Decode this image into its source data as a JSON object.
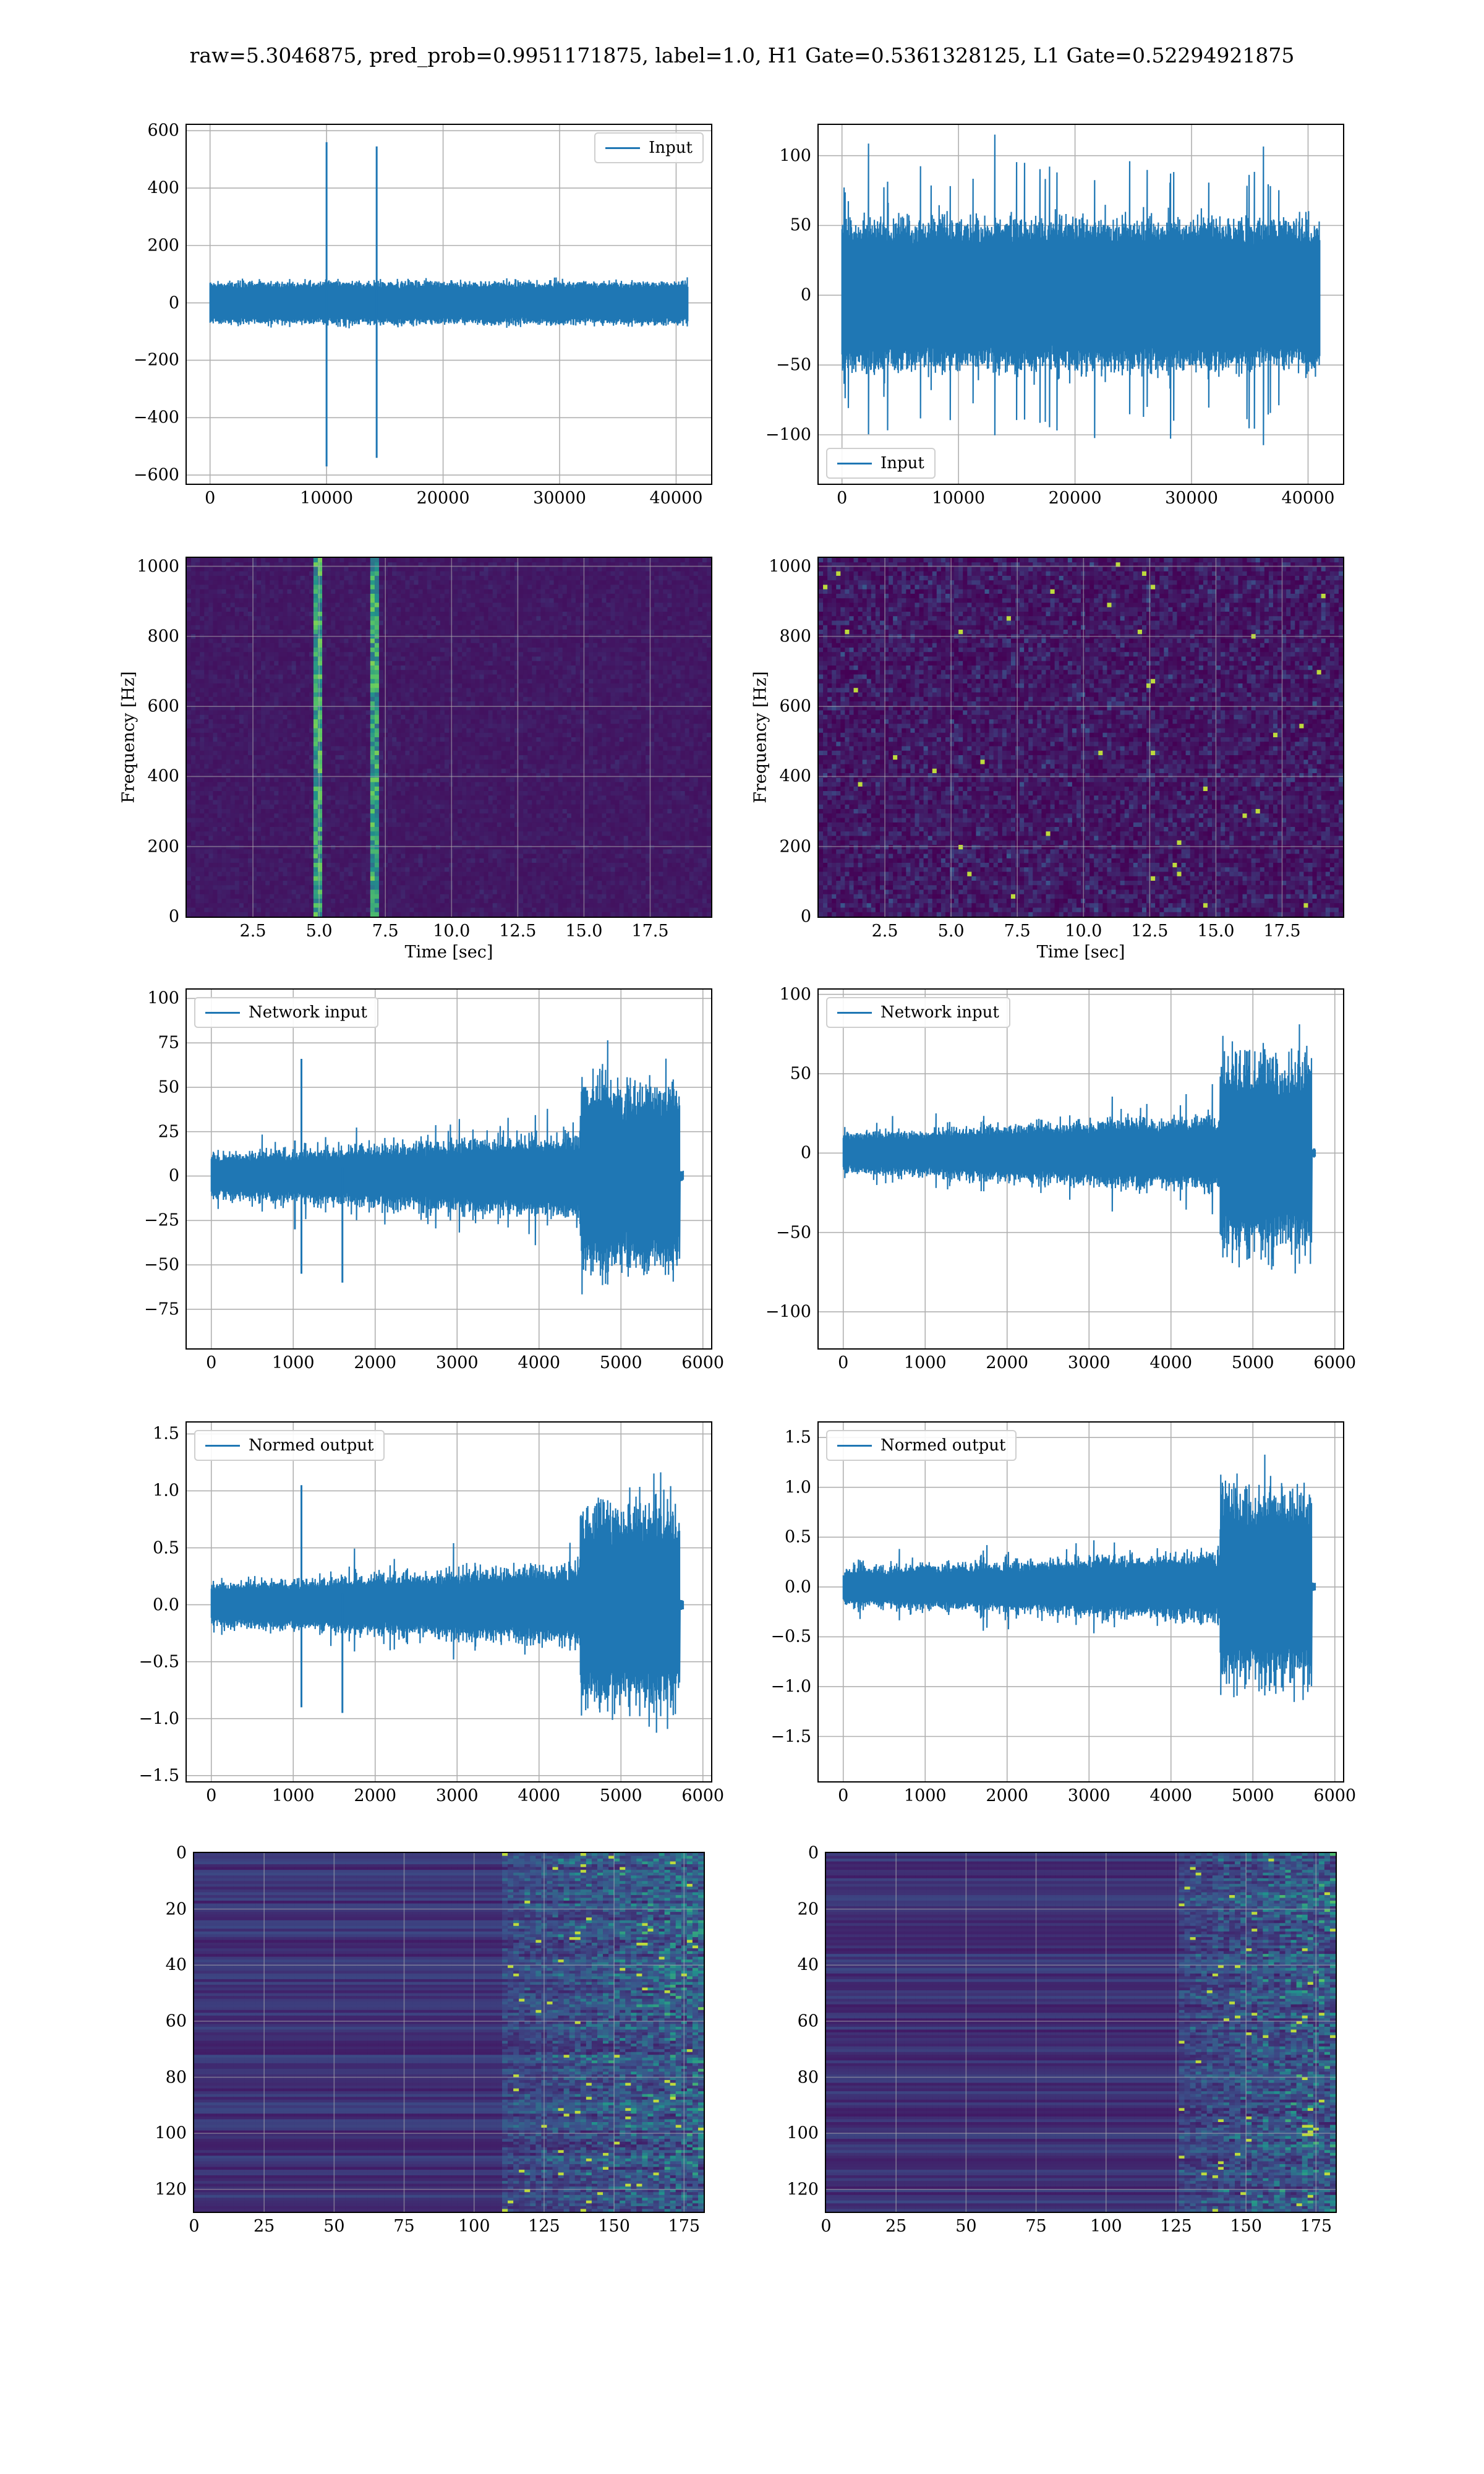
{
  "figure": {
    "title": "raw=5.3046875, pred_prob=0.9951171875, label=1.0, H1 Gate=0.5361328125, L1 Gate=0.52294921875"
  },
  "colors": {
    "line": "#1f77b4",
    "grid": "#b0b0b0",
    "heat_low": "#440154",
    "heat_mid": "#21918c",
    "heat_high": "#fde725"
  },
  "chart_data": [
    {
      "id": "h1-input",
      "type": "line",
      "legend": {
        "label": "Input",
        "location": "upper right"
      },
      "xlim": [
        -2000,
        43000
      ],
      "ylim": [
        -630,
        620
      ],
      "xticks": [
        0,
        10000,
        20000,
        30000,
        40000
      ],
      "yticks": [
        -600,
        -400,
        -200,
        0,
        200,
        400,
        600
      ],
      "series": [
        {
          "x_range": [
            0,
            41000
          ],
          "noise_amplitude": 90,
          "spikes": [
            {
              "x": 10000,
              "min": -570,
              "max": 560
            },
            {
              "x": 14300,
              "min": -540,
              "max": 545
            }
          ]
        }
      ],
      "grid": true,
      "xlabel": "",
      "ylabel": ""
    },
    {
      "id": "l1-input",
      "type": "line",
      "legend": {
        "label": "Input",
        "location": "lower left"
      },
      "xlim": [
        -2000,
        43000
      ],
      "ylim": [
        -135,
        122
      ],
      "xticks": [
        0,
        10000,
        20000,
        30000,
        40000
      ],
      "yticks": [
        -100,
        -50,
        0,
        50,
        100
      ],
      "series": [
        {
          "x_range": [
            0,
            41000
          ],
          "noise_amplitude": 65,
          "peak_amplitude": 118
        }
      ],
      "grid": true,
      "xlabel": "",
      "ylabel": ""
    },
    {
      "id": "h1-spectrogram",
      "type": "heatmap",
      "xlim": [
        0,
        19.8
      ],
      "ylim": [
        0,
        1024
      ],
      "xticks": [
        2.5,
        5.0,
        7.5,
        10.0,
        12.5,
        15.0,
        17.5
      ],
      "yticks": [
        0,
        200,
        400,
        600,
        800,
        1000
      ],
      "features": [
        {
          "kind": "vertical-line",
          "time": 5.0
        },
        {
          "kind": "vertical-line",
          "time": 7.1
        }
      ],
      "grid": true,
      "xlabel": "Time [sec]",
      "ylabel": "Frequency [Hz]"
    },
    {
      "id": "l1-spectrogram",
      "type": "heatmap",
      "xlim": [
        0,
        19.8
      ],
      "ylim": [
        0,
        1024
      ],
      "xticks": [
        2.5,
        5.0,
        7.5,
        10.0,
        12.5,
        15.0,
        17.5
      ],
      "yticks": [
        0,
        200,
        400,
        600,
        800,
        1000
      ],
      "features": [
        {
          "kind": "noise"
        }
      ],
      "grid": true,
      "xlabel": "Time [sec]",
      "ylabel": "Frequency [Hz]"
    },
    {
      "id": "h1-network-input",
      "type": "line",
      "legend": {
        "label": "Network input",
        "location": "upper left"
      },
      "xlim": [
        -300,
        6100
      ],
      "ylim": [
        -97,
        105
      ],
      "xticks": [
        0,
        1000,
        2000,
        3000,
        4000,
        5000,
        6000
      ],
      "yticks": [
        -75,
        -50,
        -25,
        0,
        25,
        50,
        75,
        100
      ],
      "series": [
        {
          "x_range": [
            0,
            5760
          ],
          "base_amplitude": 20,
          "burst_start": 4500,
          "burst_amplitude": 90,
          "spikes": [
            {
              "x": 1100,
              "min": -55,
              "max": 66
            },
            {
              "x": 1600,
              "min": -60,
              "max": 5
            },
            {
              "x": 1020,
              "min": -30,
              "max": 20
            }
          ]
        }
      ],
      "grid": true,
      "xlabel": "",
      "ylabel": ""
    },
    {
      "id": "l1-network-input",
      "type": "line",
      "legend": {
        "label": "Network input",
        "location": "upper left"
      },
      "xlim": [
        -300,
        6100
      ],
      "ylim": [
        -123,
        103
      ],
      "xticks": [
        0,
        1000,
        2000,
        3000,
        4000,
        5000,
        6000
      ],
      "yticks": [
        -100,
        -50,
        0,
        50,
        100
      ],
      "series": [
        {
          "x_range": [
            0,
            5760
          ],
          "base_amplitude": 20,
          "burst_start": 4600,
          "burst_amplitude": 100,
          "spikes": []
        }
      ],
      "grid": true,
      "xlabel": "",
      "ylabel": ""
    },
    {
      "id": "h1-normed-output",
      "type": "line",
      "legend": {
        "label": "Normed output",
        "location": "upper left"
      },
      "xlim": [
        -300,
        6100
      ],
      "ylim": [
        -1.55,
        1.6
      ],
      "xticks": [
        0,
        1000,
        2000,
        3000,
        4000,
        5000,
        6000
      ],
      "yticks": [
        -1.5,
        -1.0,
        -0.5,
        0.0,
        0.5,
        1.0,
        1.5
      ],
      "series": [
        {
          "x_range": [
            0,
            5760
          ],
          "base_amplitude": 0.3,
          "burst_start": 4500,
          "burst_amplitude": 1.45,
          "spikes": [
            {
              "x": 1100,
              "min": -0.9,
              "max": 1.05
            },
            {
              "x": 1600,
              "min": -0.95,
              "max": 0.1
            }
          ]
        }
      ],
      "grid": true,
      "xlabel": "",
      "ylabel": ""
    },
    {
      "id": "l1-normed-output",
      "type": "line",
      "legend": {
        "label": "Normed output",
        "location": "upper left"
      },
      "xlim": [
        -300,
        6100
      ],
      "ylim": [
        -1.95,
        1.65
      ],
      "xticks": [
        0,
        1000,
        2000,
        3000,
        4000,
        5000,
        6000
      ],
      "yticks": [
        -1.5,
        -1.0,
        -0.5,
        0.0,
        0.5,
        1.0,
        1.5
      ],
      "series": [
        {
          "x_range": [
            0,
            5760
          ],
          "base_amplitude": 0.3,
          "burst_start": 4600,
          "burst_amplitude": 1.6,
          "spikes": []
        }
      ],
      "grid": true,
      "xlabel": "",
      "ylabel": ""
    },
    {
      "id": "h1-features",
      "type": "heatmap",
      "xlim": [
        0,
        182
      ],
      "ylim": [
        128,
        0
      ],
      "xticks": [
        0,
        25,
        50,
        75,
        100,
        125,
        150,
        175
      ],
      "yticks": [
        0,
        20,
        40,
        60,
        80,
        100,
        120
      ],
      "features": [
        {
          "kind": "rows",
          "active_from": 110
        }
      ],
      "grid": true,
      "xlabel": "",
      "ylabel": ""
    },
    {
      "id": "l1-features",
      "type": "heatmap",
      "xlim": [
        0,
        182
      ],
      "ylim": [
        128,
        0
      ],
      "xticks": [
        0,
        25,
        50,
        75,
        100,
        125,
        150,
        175
      ],
      "yticks": [
        0,
        20,
        40,
        60,
        80,
        100,
        120
      ],
      "features": [
        {
          "kind": "rows",
          "active_from": 125
        }
      ],
      "grid": true,
      "xlabel": "",
      "ylabel": ""
    }
  ]
}
